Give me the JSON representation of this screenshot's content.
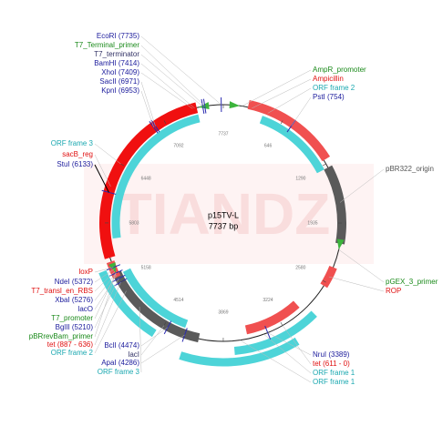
{
  "title": "p15TV-L",
  "length_label": "7737 bp",
  "watermark": "TIANDZ",
  "scale_ticks": [
    7737,
    646,
    1290,
    1935,
    2580,
    3224,
    3869,
    4514,
    5158,
    5803,
    6448,
    7092
  ],
  "labels": [
    {
      "text": "EcoRI (7735)",
      "color": "#1b1b9c"
    },
    {
      "text": "T7_Terminal_primer",
      "color": "#1a8a1a"
    },
    {
      "text": "T7_terminator",
      "color": "#333366"
    },
    {
      "text": "BamHI (7414)",
      "color": "#1b1b9c"
    },
    {
      "text": "XhoI (7409)",
      "color": "#1b1b9c"
    },
    {
      "text": "SacII (6971)",
      "color": "#1b1b9c"
    },
    {
      "text": "KpnI (6953)",
      "color": "#1b1b9c"
    },
    {
      "text": "AmpR_promoter",
      "color": "#1a8a1a"
    },
    {
      "text": "Ampicillin",
      "color": "#e01010"
    },
    {
      "text": "ORF frame 2",
      "color": "#1aa8b0"
    },
    {
      "text": "PstI (754)",
      "color": "#1b1b9c"
    },
    {
      "text": "pBR322_origin",
      "color": "#555555"
    },
    {
      "text": "pGEX_3_primer",
      "color": "#1a8a1a"
    },
    {
      "text": "ROP",
      "color": "#e01010"
    },
    {
      "text": "ORF frame 3",
      "color": "#1aa8b0"
    },
    {
      "text": "sacB_reg",
      "color": "#e01010"
    },
    {
      "text": "StuI (6133)",
      "color": "#1b1b9c"
    },
    {
      "text": "loxP",
      "color": "#e01010"
    },
    {
      "text": "NdeI (5372)",
      "color": "#1b1b9c"
    },
    {
      "text": "T7_transl_en_RBS",
      "color": "#e01010"
    },
    {
      "text": "XbaI (5276)",
      "color": "#1b1b9c"
    },
    {
      "text": "lacO",
      "color": "#1b1b9c"
    },
    {
      "text": "T7_promoter",
      "color": "#1a8a1a"
    },
    {
      "text": "BglII (5210)",
      "color": "#1b1b9c"
    },
    {
      "text": "pBRrevBam_primer",
      "color": "#1a8a1a"
    },
    {
      "text": "tet (887 - 636)",
      "color": "#e01010"
    },
    {
      "text": "ORF frame 2",
      "color": "#1aa8b0"
    },
    {
      "text": "BclI (4474)",
      "color": "#1b1b9c"
    },
    {
      "text": "lacI",
      "color": "#333366"
    },
    {
      "text": "ApaI (4286)",
      "color": "#1b1b9c"
    },
    {
      "text": "ORF frame 3",
      "color": "#1aa8b0"
    },
    {
      "text": "NruI (3389)",
      "color": "#1b1b9c"
    },
    {
      "text": "tet (611 - 0)",
      "color": "#e01010"
    },
    {
      "text": "ORF frame 1",
      "color": "#1aa8b0"
    },
    {
      "text": "ORF frame 1",
      "color": "#1aa8b0"
    }
  ]
}
